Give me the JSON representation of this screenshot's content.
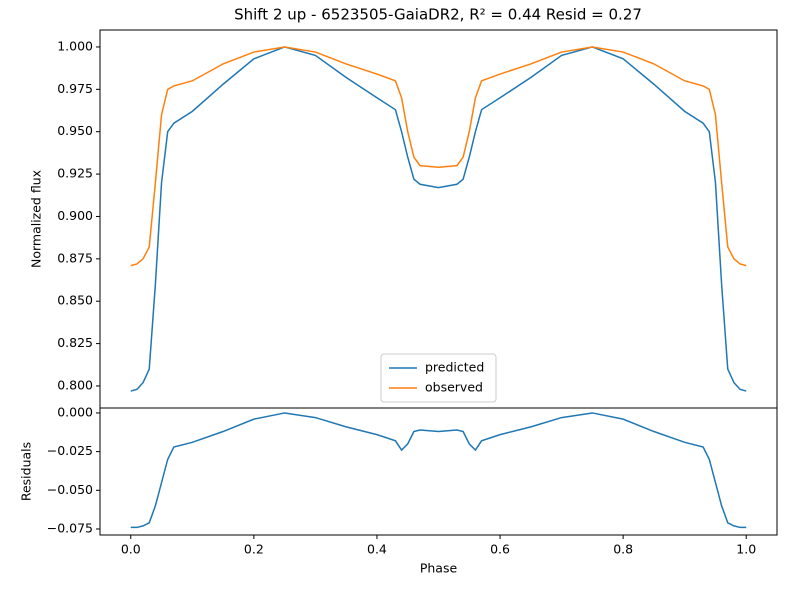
{
  "chart_data": [
    {
      "type": "line",
      "title": "Shift 2 up - 6523505-GaiaDR2, R² = 0.44 Resid = 0.27",
      "ylabel": "Normalized flux",
      "x": [
        0,
        0.01,
        0.02,
        0.03,
        0.04,
        0.05,
        0.06,
        0.07,
        0.1,
        0.15,
        0.2,
        0.25,
        0.3,
        0.35,
        0.4,
        0.43,
        0.44,
        0.45,
        0.46,
        0.47,
        0.5,
        0.53,
        0.54,
        0.55,
        0.56,
        0.57,
        0.6,
        0.65,
        0.7,
        0.75,
        0.8,
        0.85,
        0.9,
        0.93,
        0.94,
        0.95,
        0.96,
        0.97,
        0.98,
        0.99,
        1.0
      ],
      "series": [
        {
          "name": "predicted",
          "color": "#1f77b4",
          "values": [
            0.797,
            0.798,
            0.802,
            0.81,
            0.86,
            0.92,
            0.95,
            0.955,
            0.962,
            0.978,
            0.993,
            1.0,
            0.995,
            0.982,
            0.97,
            0.963,
            0.95,
            0.935,
            0.922,
            0.919,
            0.917,
            0.919,
            0.922,
            0.935,
            0.95,
            0.963,
            0.97,
            0.982,
            0.995,
            1.0,
            0.993,
            0.978,
            0.962,
            0.955,
            0.95,
            0.92,
            0.86,
            0.81,
            0.802,
            0.798,
            0.797
          ]
        },
        {
          "name": "observed",
          "color": "#ff7f0e",
          "values": [
            0.871,
            0.872,
            0.875,
            0.882,
            0.92,
            0.96,
            0.975,
            0.977,
            0.98,
            0.99,
            0.997,
            1.0,
            0.997,
            0.99,
            0.984,
            0.98,
            0.97,
            0.95,
            0.935,
            0.93,
            0.929,
            0.93,
            0.935,
            0.95,
            0.97,
            0.98,
            0.984,
            0.99,
            0.997,
            1.0,
            0.997,
            0.99,
            0.98,
            0.977,
            0.975,
            0.96,
            0.92,
            0.882,
            0.875,
            0.872,
            0.871
          ]
        }
      ],
      "xlim": [
        -0.05,
        1.05
      ],
      "ylim": [
        0.787,
        1.01
      ],
      "yticks": [
        {
          "value": 0.8,
          "label": "0.800"
        },
        {
          "value": 0.825,
          "label": "0.825"
        },
        {
          "value": 0.85,
          "label": "0.850"
        },
        {
          "value": 0.875,
          "label": "0.875"
        },
        {
          "value": 0.9,
          "label": "0.900"
        },
        {
          "value": 0.925,
          "label": "0.925"
        },
        {
          "value": 0.95,
          "label": "0.950"
        },
        {
          "value": 0.975,
          "label": "0.975"
        },
        {
          "value": 1.0,
          "label": "1.000"
        }
      ],
      "legend": "lower center"
    },
    {
      "type": "line",
      "ylabel": "Residuals",
      "xlabel": "Phase",
      "x": [
        0,
        0.01,
        0.02,
        0.03,
        0.04,
        0.05,
        0.06,
        0.07,
        0.1,
        0.15,
        0.2,
        0.25,
        0.3,
        0.35,
        0.4,
        0.43,
        0.44,
        0.45,
        0.46,
        0.47,
        0.5,
        0.53,
        0.54,
        0.55,
        0.56,
        0.57,
        0.6,
        0.65,
        0.7,
        0.75,
        0.8,
        0.85,
        0.9,
        0.93,
        0.94,
        0.95,
        0.96,
        0.97,
        0.98,
        0.99,
        1.0
      ],
      "series": [
        {
          "color": "#1f77b4",
          "values": [
            -0.074,
            -0.074,
            -0.073,
            -0.071,
            -0.06,
            -0.045,
            -0.03,
            -0.022,
            -0.019,
            -0.012,
            -0.004,
            0.0,
            -0.003,
            -0.009,
            -0.014,
            -0.018,
            -0.024,
            -0.02,
            -0.012,
            -0.011,
            -0.012,
            -0.011,
            -0.012,
            -0.02,
            -0.024,
            -0.018,
            -0.014,
            -0.009,
            -0.003,
            0.0,
            -0.004,
            -0.012,
            -0.019,
            -0.022,
            -0.03,
            -0.045,
            -0.06,
            -0.071,
            -0.073,
            -0.074,
            -0.074
          ]
        }
      ],
      "xlim": [
        -0.05,
        1.05
      ],
      "ylim": [
        -0.0789,
        0.0032
      ],
      "xticks": [
        {
          "value": 0,
          "label": "0.0"
        },
        0.2,
        0.4,
        0.6,
        0.8,
        {
          "value": 1,
          "label": "1.0"
        }
      ],
      "yticks": [
        {
          "value": 0,
          "label": "0.000"
        },
        {
          "value": -0.025,
          "label": "−0.025"
        },
        {
          "value": -0.05,
          "label": "−0.050"
        },
        {
          "value": -0.075,
          "label": "−0.075"
        }
      ]
    }
  ]
}
